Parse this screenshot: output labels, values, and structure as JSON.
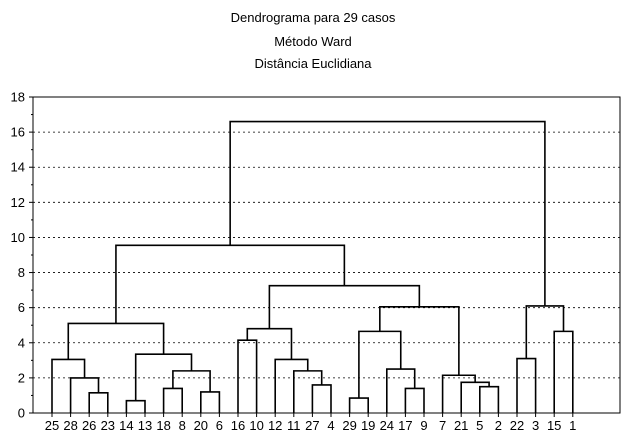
{
  "chart_data": {
    "type": "dendrogram",
    "title_lines": [
      "Dendrograma para 29 casos",
      "Método Ward",
      "Distância Euclidiana"
    ],
    "ylim": [
      0,
      18
    ],
    "y_ticks": [
      0,
      2,
      4,
      6,
      8,
      10,
      12,
      14,
      16,
      18
    ],
    "grid": true,
    "leaves": [
      "25",
      "28",
      "26",
      "23",
      "14",
      "13",
      "18",
      "8",
      "20",
      "6",
      "16",
      "10",
      "12",
      "11",
      "27",
      "4",
      "29",
      "19",
      "24",
      "17",
      "9",
      "7",
      "21",
      "5",
      "2",
      "22",
      "3",
      "15",
      "1"
    ],
    "merges": [
      {
        "id": "m1",
        "left": "23",
        "right": "26",
        "height": 1.15
      },
      {
        "id": "m2",
        "left": "28",
        "right": "m1",
        "height": 2.0
      },
      {
        "id": "m3",
        "left": "25",
        "right": "m2",
        "height": 3.05
      },
      {
        "id": "m4",
        "left": "14",
        "right": "13",
        "height": 0.7
      },
      {
        "id": "m5",
        "left": "18",
        "right": "8",
        "height": 1.4
      },
      {
        "id": "m6",
        "left": "20",
        "right": "6",
        "height": 1.2
      },
      {
        "id": "m7",
        "left": "m5",
        "right": "m6",
        "height": 2.4
      },
      {
        "id": "m8",
        "left": "m4",
        "right": "m7",
        "height": 3.35
      },
      {
        "id": "m9",
        "left": "m3",
        "right": "m8",
        "height": 5.1
      },
      {
        "id": "m10",
        "left": "16",
        "right": "10",
        "height": 4.15
      },
      {
        "id": "m11",
        "left": "27",
        "right": "4",
        "height": 1.6
      },
      {
        "id": "m12",
        "left": "11",
        "right": "m11",
        "height": 2.4
      },
      {
        "id": "m13",
        "left": "12",
        "right": "m12",
        "height": 3.05
      },
      {
        "id": "m14",
        "left": "m10",
        "right": "m13",
        "height": 4.8
      },
      {
        "id": "m15",
        "left": "29",
        "right": "19",
        "height": 0.85
      },
      {
        "id": "m16",
        "left": "17",
        "right": "9",
        "height": 1.4
      },
      {
        "id": "m17",
        "left": "24",
        "right": "m16",
        "height": 2.5
      },
      {
        "id": "m18",
        "left": "m15",
        "right": "m17",
        "height": 4.65
      },
      {
        "id": "m19",
        "left": "5",
        "right": "2",
        "height": 1.5
      },
      {
        "id": "m20",
        "left": "21",
        "right": "m19",
        "height": 1.75
      },
      {
        "id": "m21",
        "left": "7",
        "right": "m20",
        "height": 2.15
      },
      {
        "id": "m22",
        "left": "m18",
        "right": "m21",
        "height": 6.05
      },
      {
        "id": "m23",
        "left": "m14",
        "right": "m22",
        "height": 7.25
      },
      {
        "id": "m24",
        "left": "m9",
        "right": "m23",
        "height": 9.55
      },
      {
        "id": "m25",
        "left": "22",
        "right": "3",
        "height": 3.1
      },
      {
        "id": "m26",
        "left": "15",
        "right": "1",
        "height": 4.65
      },
      {
        "id": "m27",
        "left": "m25",
        "right": "m26",
        "height": 6.1
      },
      {
        "id": "m28",
        "left": "m24",
        "right": "m27",
        "height": 16.6
      }
    ]
  }
}
